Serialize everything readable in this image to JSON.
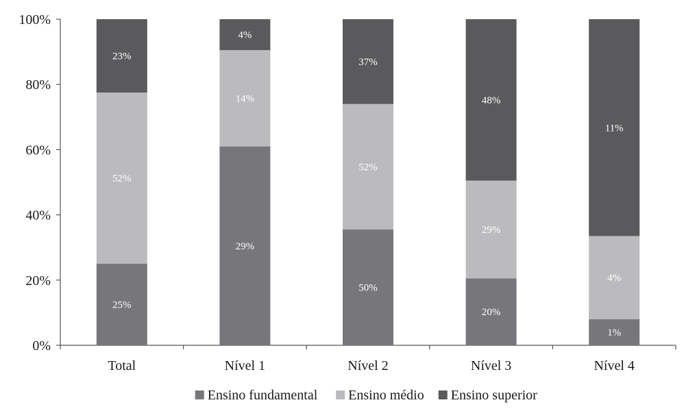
{
  "chart_data": {
    "type": "bar",
    "stacked": true,
    "categories": [
      "Total",
      "Nível 1",
      "Nível 2",
      "Nível 3",
      "Nível 4"
    ],
    "series": [
      {
        "name": "Ensino fundamental",
        "color": "#77777b",
        "heights": [
          25,
          61,
          35.5,
          20.5,
          8
        ],
        "labels": [
          "25%",
          "29%",
          "50%",
          "20%",
          "1%"
        ]
      },
      {
        "name": "Ensino médio",
        "color": "#bbbbbe",
        "heights": [
          52.5,
          29.5,
          38.5,
          30,
          25.5
        ],
        "labels": [
          "52%",
          "14%",
          "52%",
          "29%",
          "4%"
        ]
      },
      {
        "name": "Ensino superior",
        "color": "#5a5a5c",
        "heights": [
          22.5,
          9.5,
          26,
          49.5,
          66.5
        ],
        "labels": [
          "23%",
          "4%",
          "37%",
          "48%",
          "11%"
        ]
      }
    ],
    "yticks": [
      "0%",
      "20%",
      "40%",
      "60%",
      "80%",
      "100%"
    ],
    "ylim": [
      0,
      100
    ],
    "legend": {
      "position": "bottom"
    }
  }
}
